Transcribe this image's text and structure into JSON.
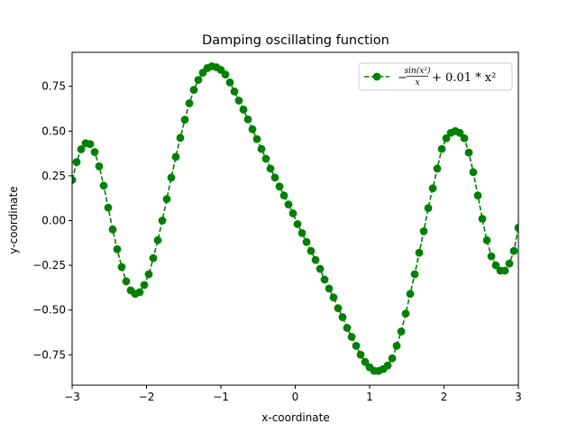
{
  "chart_data": {
    "type": "line",
    "title": "Damping oscillating function",
    "xlabel": "x-coordinate",
    "ylabel": "y-coordinate",
    "xlim": [
      -3,
      3
    ],
    "ylim": [
      -0.92,
      0.94
    ],
    "xticks": [
      -3,
      -2,
      -1,
      0,
      1,
      2,
      3
    ],
    "xtick_labels": [
      "−3",
      "−2",
      "−1",
      "0",
      "1",
      "2",
      "3"
    ],
    "yticks": [
      -0.75,
      -0.5,
      -0.25,
      0.0,
      0.25,
      0.5,
      0.75
    ],
    "ytick_labels": [
      "−0.75",
      "−0.50",
      "−0.25",
      "0.00",
      "0.25",
      "0.50",
      "0.75"
    ],
    "grid": false,
    "legend_position": "upper right",
    "series": [
      {
        "name": "-sin(x^2)/x + 0.01*x^2",
        "legend_parts": {
          "prefix": "−",
          "numerator": "sin(x²)",
          "denominator": "x",
          "suffix": "+ 0.01 * x²"
        },
        "color": "#008000",
        "marker": "circle",
        "linestyle": "dashed",
        "x_start": -3,
        "x_end": 3,
        "n_points": 100,
        "x": [
          -3.0,
          -2.9394,
          -2.8788,
          -2.8182,
          -2.7576,
          -2.697,
          -2.6364,
          -2.5758,
          -2.5152,
          -2.4545,
          -2.3939,
          -2.3333,
          -2.2727,
          -2.2121,
          -2.1515,
          -2.0909,
          -2.0303,
          -1.9697,
          -1.9091,
          -1.8485,
          -1.7879,
          -1.7273,
          -1.6667,
          -1.6061,
          -1.5455,
          -1.4848,
          -1.4242,
          -1.3636,
          -1.303,
          -1.2424,
          -1.1818,
          -1.1212,
          -1.0606,
          -1.0,
          -0.9394,
          -0.8788,
          -0.8182,
          -0.7576,
          -0.697,
          -0.6364,
          -0.5758,
          -0.5152,
          -0.4545,
          -0.3939,
          -0.3333,
          -0.2727,
          -0.2121,
          -0.1515,
          -0.0909,
          -0.0303,
          0.0303,
          0.0909,
          0.1515,
          0.2121,
          0.2727,
          0.3333,
          0.3939,
          0.4545,
          0.5152,
          0.5758,
          0.6364,
          0.697,
          0.7576,
          0.8182,
          0.8788,
          0.9394,
          1.0,
          1.0606,
          1.1212,
          1.1818,
          1.2424,
          1.303,
          1.3636,
          1.4242,
          1.4848,
          1.5455,
          1.6061,
          1.6667,
          1.7273,
          1.7879,
          1.8485,
          1.9091,
          1.9697,
          2.0303,
          2.0909,
          2.1515,
          2.2121,
          2.2727,
          2.3333,
          2.3939,
          2.4545,
          2.5152,
          2.5758,
          2.6364,
          2.697,
          2.7576,
          2.8182,
          2.8788,
          2.9394,
          3.0
        ],
        "y": [
          0.227,
          0.327,
          0.398,
          0.432,
          0.427,
          0.383,
          0.303,
          0.195,
          0.072,
          -0.05,
          -0.16,
          -0.26,
          -0.34,
          -0.39,
          -0.41,
          -0.4,
          -0.36,
          -0.3,
          -0.21,
          -0.11,
          0.0,
          0.12,
          0.24,
          0.356,
          0.462,
          0.563,
          0.655,
          0.73,
          0.786,
          0.826,
          0.852,
          0.862,
          0.857,
          0.842,
          0.816,
          0.772,
          0.721,
          0.67,
          0.62,
          0.565,
          0.51,
          0.455,
          0.4,
          0.345,
          0.29,
          0.24,
          0.19,
          0.14,
          0.09,
          0.04,
          -0.02,
          -0.07,
          -0.12,
          -0.17,
          -0.22,
          -0.27,
          -0.33,
          -0.38,
          -0.43,
          -0.49,
          -0.54,
          -0.6,
          -0.65,
          -0.7,
          -0.75,
          -0.79,
          -0.82,
          -0.84,
          -0.84,
          -0.83,
          -0.81,
          -0.77,
          -0.7,
          -0.62,
          -0.52,
          -0.41,
          -0.3,
          -0.18,
          -0.06,
          0.07,
          0.18,
          0.29,
          0.4,
          0.46,
          0.49,
          0.5,
          0.49,
          0.46,
          0.38,
          0.27,
          0.14,
          0.01,
          -0.11,
          -0.2,
          -0.25,
          -0.28,
          -0.28,
          -0.24,
          -0.17,
          -0.04
        ]
      }
    ]
  }
}
